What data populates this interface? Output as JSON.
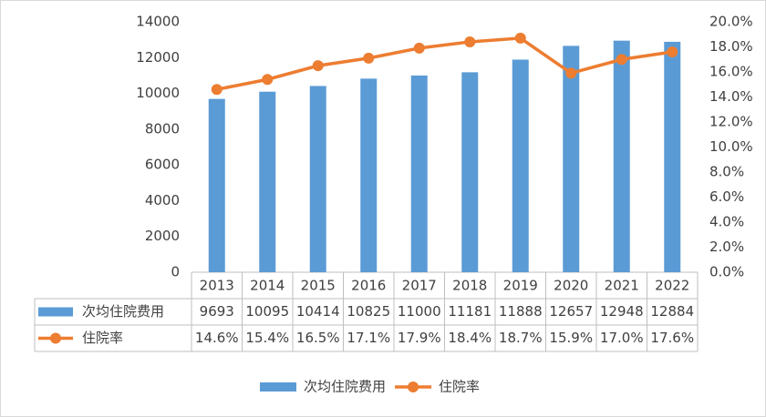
{
  "chart_data": {
    "type": "bar-line-table",
    "categories": [
      "2013",
      "2014",
      "2015",
      "2016",
      "2017",
      "2018",
      "2019",
      "2020",
      "2021",
      "2022"
    ],
    "series": [
      {
        "name": "次均住院费用",
        "type": "bar",
        "color": "#5b9bd5",
        "values": [
          9693,
          10095,
          10414,
          10825,
          11000,
          11181,
          11888,
          12657,
          12948,
          12884
        ]
      },
      {
        "name": "住院率",
        "type": "line",
        "axis": "y2",
        "color": "#ed7d31",
        "values": [
          14.6,
          15.4,
          16.5,
          17.1,
          17.9,
          18.4,
          18.7,
          15.9,
          17.0,
          17.6
        ],
        "value_labels": [
          "14.6%",
          "15.4%",
          "16.5%",
          "17.1%",
          "17.9%",
          "18.4%",
          "18.7%",
          "15.9%",
          "17.0%",
          "17.6%"
        ]
      }
    ],
    "ylim": [
      0,
      14000
    ],
    "yticks": [
      0,
      2000,
      4000,
      6000,
      8000,
      10000,
      12000,
      14000
    ],
    "y2lim": [
      0,
      20
    ],
    "y2ticks": [
      {
        "value": 0,
        "label": "0.0%"
      },
      {
        "value": 2,
        "label": "2.0%"
      },
      {
        "value": 4,
        "label": "4.0%"
      },
      {
        "value": 6,
        "label": "6.0%"
      },
      {
        "value": 8,
        "label": "8.0%"
      },
      {
        "value": 10,
        "label": "10.0%"
      },
      {
        "value": 12,
        "label": "12.0%"
      },
      {
        "value": 14,
        "label": "14.0%"
      },
      {
        "value": 16,
        "label": "16.0%"
      },
      {
        "value": 18,
        "label": "18.0%"
      },
      {
        "value": 20,
        "label": "20.0%"
      }
    ],
    "grid": false,
    "legend": "bottom"
  }
}
